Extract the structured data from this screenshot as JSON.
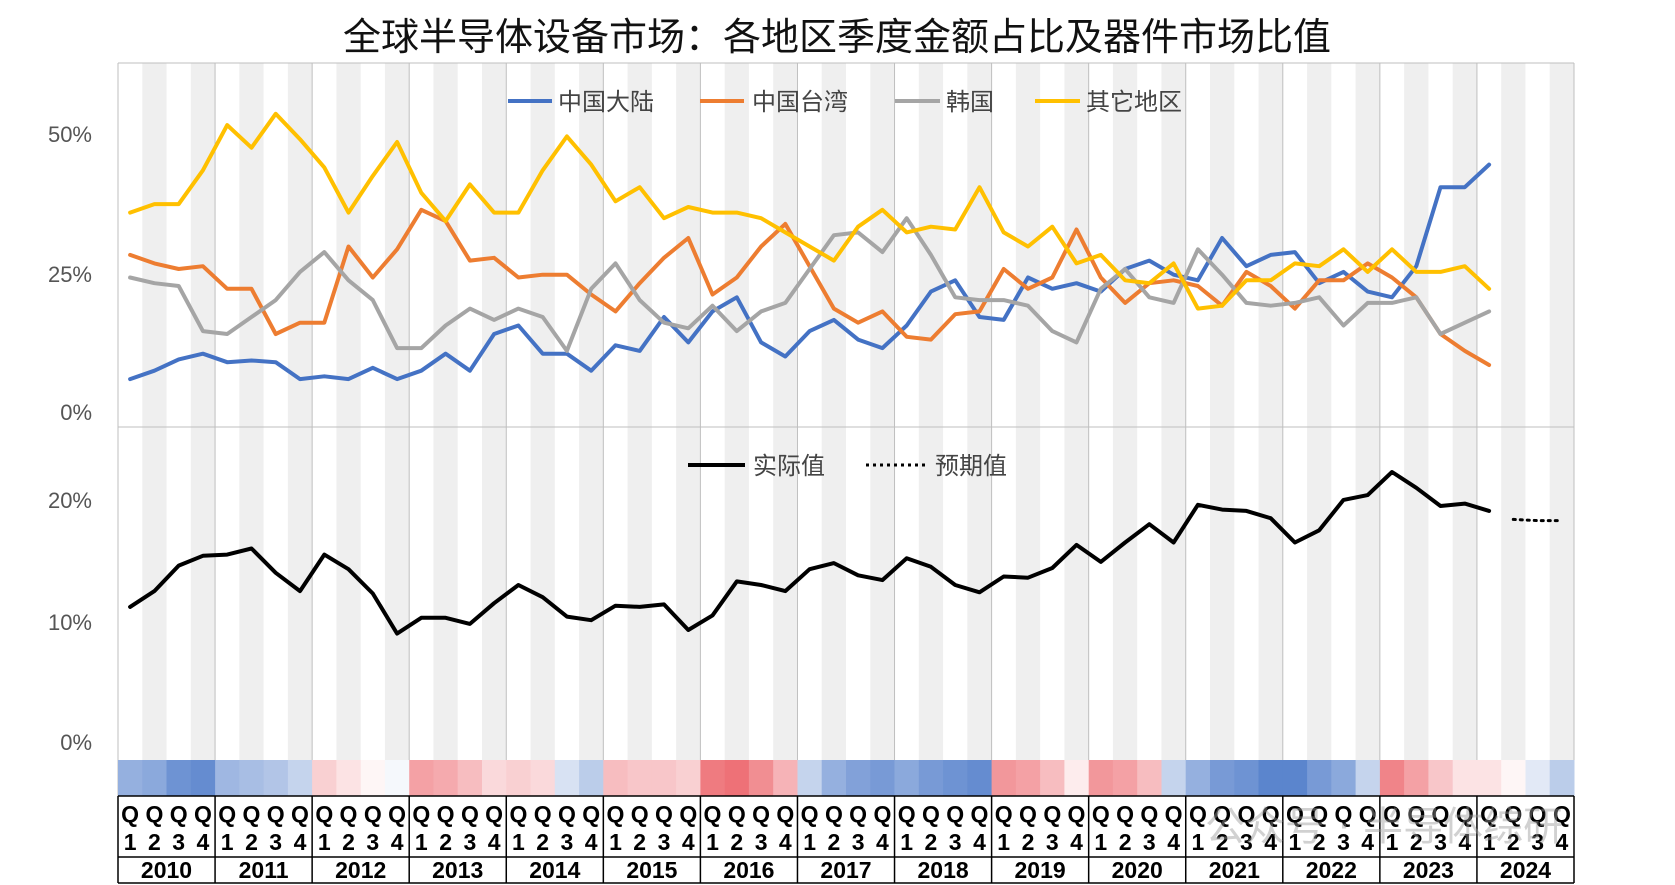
{
  "chart_data": [
    {
      "type": "line",
      "title": "全球半导体设备市场：各地区季度金额占比及器件市场比值",
      "y_ticks": [
        "50%",
        "25%",
        "0%"
      ],
      "ylim": [
        0,
        0.62
      ],
      "legend_position": "top-center",
      "grid": false,
      "series": [
        {
          "name": "中国大陆",
          "color": "#4472C4",
          "values": [
            0.06,
            0.075,
            0.095,
            0.105,
            0.09,
            0.093,
            0.09,
            0.06,
            0.065,
            0.06,
            0.08,
            0.06,
            0.075,
            0.105,
            0.075,
            0.14,
            0.155,
            0.105,
            0.105,
            0.075,
            0.12,
            0.11,
            0.17,
            0.125,
            0.18,
            0.205,
            0.125,
            0.1,
            0.145,
            0.165,
            0.13,
            0.115,
            0.155,
            0.215,
            0.235,
            0.17,
            0.165,
            0.24,
            0.22,
            0.23,
            0.215,
            0.255,
            0.27,
            0.245,
            0.235,
            0.31,
            0.26,
            0.28,
            0.285,
            0.23,
            0.25,
            0.215,
            0.205,
            0.26,
            0.4,
            0.4,
            0.44
          ]
        },
        {
          "name": "中国台湾",
          "color": "#ED7D31",
          "values": [
            0.28,
            0.265,
            0.255,
            0.26,
            0.22,
            0.22,
            0.14,
            0.16,
            0.16,
            0.295,
            0.24,
            0.29,
            0.36,
            0.34,
            0.27,
            0.275,
            0.24,
            0.245,
            0.245,
            0.21,
            0.18,
            0.23,
            0.275,
            0.31,
            0.21,
            0.24,
            0.295,
            0.335,
            0.26,
            0.185,
            0.16,
            0.18,
            0.135,
            0.13,
            0.175,
            0.18,
            0.255,
            0.22,
            0.24,
            0.325,
            0.24,
            0.195,
            0.23,
            0.235,
            0.225,
            0.19,
            0.25,
            0.225,
            0.185,
            0.235,
            0.235,
            0.265,
            0.24,
            0.205,
            0.14,
            0.11,
            0.085
          ]
        },
        {
          "name": "韩国",
          "color": "#A5A5A5",
          "values": [
            0.24,
            0.23,
            0.225,
            0.145,
            0.14,
            0.17,
            0.2,
            0.25,
            0.285,
            0.235,
            0.2,
            0.115,
            0.115,
            0.155,
            0.185,
            0.165,
            0.185,
            0.17,
            0.11,
            0.22,
            0.265,
            0.2,
            0.16,
            0.15,
            0.19,
            0.145,
            0.18,
            0.195,
            0.255,
            0.315,
            0.32,
            0.285,
            0.345,
            0.28,
            0.205,
            0.2,
            0.2,
            0.19,
            0.145,
            0.125,
            0.22,
            0.255,
            0.205,
            0.195,
            0.29,
            0.245,
            0.195,
            0.19,
            0.195,
            0.205,
            0.155,
            0.195,
            0.195,
            0.205,
            0.14,
            0.16,
            0.18
          ]
        },
        {
          "name": "其它地区",
          "color": "#FFC000",
          "values": [
            0.355,
            0.37,
            0.37,
            0.43,
            0.51,
            0.47,
            0.53,
            0.485,
            0.435,
            0.355,
            0.42,
            0.48,
            0.39,
            0.34,
            0.405,
            0.355,
            0.355,
            0.43,
            0.49,
            0.44,
            0.375,
            0.4,
            0.345,
            0.365,
            0.355,
            0.355,
            0.345,
            0.32,
            0.295,
            0.27,
            0.33,
            0.36,
            0.32,
            0.33,
            0.325,
            0.4,
            0.32,
            0.295,
            0.33,
            0.265,
            0.28,
            0.235,
            0.23,
            0.265,
            0.185,
            0.19,
            0.235,
            0.235,
            0.265,
            0.26,
            0.29,
            0.25,
            0.29,
            0.25,
            0.25,
            0.26,
            0.22
          ]
        }
      ]
    },
    {
      "type": "line",
      "y_ticks": [
        "20%",
        "10%",
        "0%"
      ],
      "ylim": [
        0,
        0.26
      ],
      "legend_position": "top-center",
      "grid": false,
      "series": [
        {
          "name": "实际值",
          "color": "#000000",
          "style": "solid",
          "values": [
            0.112,
            0.125,
            0.146,
            0.154,
            0.155,
            0.16,
            0.14,
            0.125,
            0.155,
            0.143,
            0.123,
            0.09,
            0.103,
            0.103,
            0.098,
            0.115,
            0.13,
            0.12,
            0.104,
            0.101,
            0.113,
            0.112,
            0.114,
            0.093,
            0.105,
            0.133,
            0.13,
            0.125,
            0.143,
            0.148,
            0.138,
            0.134,
            0.152,
            0.145,
            0.13,
            0.124,
            0.137,
            0.136,
            0.144,
            0.163,
            0.149,
            0.165,
            0.18,
            0.165,
            0.196,
            0.192,
            0.191,
            0.185,
            0.165,
            0.175,
            0.2,
            0.204,
            0.223,
            0.21,
            0.195,
            0.197,
            0.191
          ]
        },
        {
          "name": "预期值",
          "color": "#000000",
          "style": "dotted",
          "values": [
            null,
            null,
            null,
            null,
            null,
            null,
            null,
            null,
            null,
            null,
            null,
            null,
            null,
            null,
            null,
            null,
            null,
            null,
            null,
            null,
            null,
            null,
            null,
            null,
            null,
            null,
            null,
            null,
            null,
            null,
            null,
            null,
            null,
            null,
            null,
            null,
            null,
            null,
            null,
            null,
            null,
            null,
            null,
            null,
            null,
            null,
            null,
            null,
            null,
            null,
            null,
            null,
            null,
            null,
            null,
            null,
            null,
            0.184,
            0.183,
            0.183
          ]
        }
      ]
    }
  ],
  "x_axis": {
    "quarter_letter": "Q",
    "quarter_numbers": [
      "1",
      "2",
      "3",
      "4"
    ],
    "years": [
      "2010",
      "2011",
      "2012",
      "2013",
      "2014",
      "2015",
      "2016",
      "2017",
      "2018",
      "2019",
      "2020",
      "2021",
      "2022",
      "2023",
      "2024"
    ]
  },
  "heat_strip": [
    -0.55,
    -0.6,
    -0.75,
    -0.8,
    -0.5,
    -0.45,
    -0.4,
    -0.3,
    0.25,
    0.15,
    0.05,
    -0.05,
    0.5,
    0.45,
    0.35,
    0.2,
    0.25,
    0.2,
    -0.2,
    -0.35,
    0.35,
    0.3,
    0.3,
    0.25,
    0.7,
    0.75,
    0.6,
    0.4,
    -0.3,
    -0.55,
    -0.65,
    -0.7,
    -0.6,
    -0.7,
    -0.75,
    -0.8,
    0.55,
    0.5,
    0.35,
    0.1,
    0.55,
    0.5,
    0.35,
    -0.3,
    -0.55,
    -0.7,
    -0.75,
    -0.85,
    -0.85,
    -0.7,
    -0.6,
    -0.3,
    0.65,
    0.5,
    0.3,
    0.15,
    0.15,
    0.05,
    -0.15,
    -0.35
  ],
  "watermark": "公众号 · 半导体综研",
  "colors": {
    "positive": "#E8424A",
    "negative": "#3E6FC4",
    "band": "#EFEFEF"
  }
}
